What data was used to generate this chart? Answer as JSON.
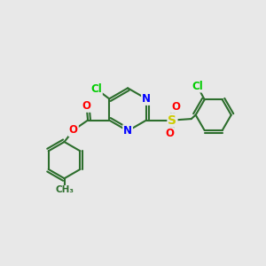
{
  "bg_color": "#e8e8e8",
  "bond_color": "#2d6e2d",
  "atom_colors": {
    "N": "#0000ff",
    "O": "#ff0000",
    "Cl": "#00cc00",
    "S": "#cccc00",
    "C": "#2d6e2d"
  },
  "bond_width": 1.5,
  "font_size_atom": 8.5
}
